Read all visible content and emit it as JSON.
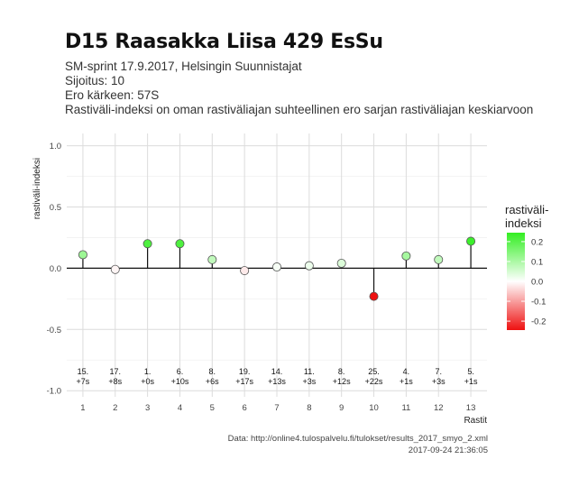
{
  "header": {
    "title": "D15 Raasakka Liisa 429 EsSu",
    "subtitle_lines": [
      "SM-sprint 17.9.2017, Helsingin Suunnistajat",
      "Sijoitus: 10",
      "Ero kärkeen: 57S",
      "Rastiväli-indeksi on oman rastiväliajan suhteellinen ero sarjan rastiväliajan keskiarvoon"
    ]
  },
  "footer": {
    "source": "Data: http://online4.tulospalvelu.fi/tulokset/results_2017_smyo_2.xml",
    "timestamp": "2017-09-24 21:36:05"
  },
  "chart_data": {
    "type": "scatter",
    "style": "lollipop",
    "x": [
      1,
      2,
      3,
      4,
      5,
      6,
      7,
      8,
      9,
      10,
      11,
      12,
      13
    ],
    "values": [
      0.11,
      -0.01,
      0.2,
      0.2,
      0.07,
      -0.02,
      0.01,
      0.02,
      0.04,
      -0.23,
      0.1,
      0.07,
      0.22
    ],
    "point_labels": [
      [
        "15.",
        "+7s"
      ],
      [
        "17.",
        "+8s"
      ],
      [
        "1.",
        "+0s"
      ],
      [
        "6.",
        "+10s"
      ],
      [
        "8.",
        "+6s"
      ],
      [
        "19.",
        "+17s"
      ],
      [
        "14.",
        "+13s"
      ],
      [
        "11.",
        "+3s"
      ],
      [
        "8.",
        "+12s"
      ],
      [
        "25.",
        "+22s"
      ],
      [
        "4.",
        "+1s"
      ],
      [
        "7.",
        "+3s"
      ],
      [
        "5.",
        "+1s"
      ]
    ],
    "xlabel": "Rastit",
    "ylabel": "rastiväli-indeksi",
    "xlim": [
      0.5,
      13.5
    ],
    "ylim": [
      -1.05,
      1.1
    ],
    "yticks": [
      -1.0,
      -0.5,
      0.0,
      0.5,
      1.0
    ],
    "ytick_labels": [
      "-1.0",
      "-0.5",
      "0.0",
      "0.5",
      "1.0"
    ],
    "grid": true,
    "legend": {
      "title_lines": [
        "rastiväli-",
        "indeksi"
      ],
      "ticks": [
        0.2,
        0.1,
        0.0,
        -0.1,
        -0.2
      ],
      "tick_labels": [
        "0.2",
        "0.1",
        "0.0",
        "-0.1",
        "-0.2"
      ],
      "position": "right"
    },
    "colors": {
      "high": "#33ee22",
      "mid": "#ffffff",
      "low": "#ee1111"
    }
  }
}
